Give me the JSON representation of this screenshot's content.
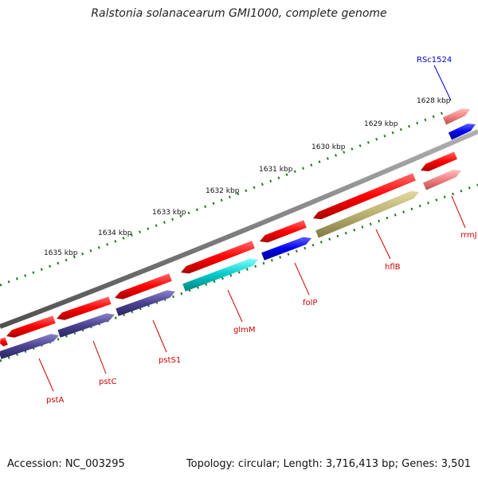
{
  "title": "Ralstonia solanacearum GMI1000, complete genome",
  "accession_label": "Accession: NC_003295",
  "topology_label": "Topology: circular; Length: 3,716,413 bp; Genes: 3,501",
  "ticks": [
    {
      "label": "1628 kbp"
    },
    {
      "label": "1629 kbp"
    },
    {
      "label": "1630 kbp"
    },
    {
      "label": "1631 kbp"
    },
    {
      "label": "1632 kbp"
    },
    {
      "label": "1633 kbp"
    },
    {
      "label": "1634 kbp"
    },
    {
      "label": "1635 kbp"
    }
  ],
  "gene_labels": [
    {
      "text": "RSc1524",
      "color": "#0000cc"
    },
    {
      "text": "rrmJ",
      "color": "#cc0000"
    },
    {
      "text": "hflB",
      "color": "#cc0000"
    },
    {
      "text": "folP",
      "color": "#cc0000"
    },
    {
      "text": "glmM",
      "color": "#cc0000"
    },
    {
      "text": "pstS1",
      "color": "#cc0000"
    },
    {
      "text": "pstC",
      "color": "#cc0000"
    },
    {
      "text": "pstA",
      "color": "#cc0000"
    }
  ],
  "colors": {
    "cds_forward": "#ff0000",
    "cds_light": "#f08080",
    "cds_blue": "#0000ee",
    "cds_slate": "#4a4290",
    "cds_cyan": "#00c8c8",
    "cds_olive": "#b8b070",
    "backbone": "#808080",
    "tick": "#1e7a1e"
  }
}
